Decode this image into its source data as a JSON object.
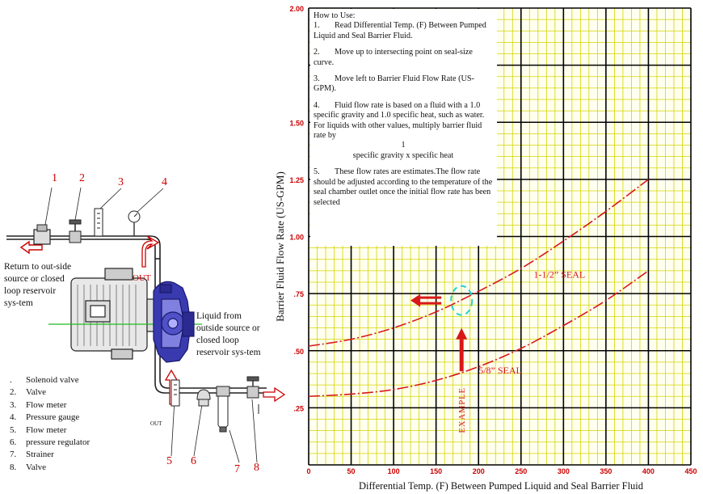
{
  "chart_data": {
    "type": "line",
    "xlabel": "Differential Temp. (F) Between Pumped Liquid and Seal Barrier Fluid",
    "ylabel": "Barrier Fluid Flow Rate (US-GPM)",
    "xlim": [
      0,
      450
    ],
    "ylim": [
      0,
      2.0
    ],
    "x_ticks": [
      "0",
      "50",
      "100",
      "150",
      "200",
      "250",
      "300",
      "350",
      "400",
      "450"
    ],
    "y_ticks": [
      ".25",
      ".50",
      ".75",
      "1.00",
      "1.25",
      "1.50",
      "2.00"
    ],
    "y_tick_values": [
      0.25,
      0.5,
      0.75,
      1.0,
      1.25,
      1.5,
      2.0
    ],
    "grid": true,
    "series": [
      {
        "name": "1-1/2\" SEAL",
        "x": [
          0,
          50,
          100,
          150,
          200,
          250,
          300,
          350,
          400
        ],
        "y": [
          0.52,
          0.55,
          0.6,
          0.67,
          0.76,
          0.86,
          0.98,
          1.11,
          1.25
        ]
      },
      {
        "name": "5/8\" SEAL",
        "x": [
          0,
          50,
          100,
          150,
          200,
          250,
          300,
          350,
          400
        ],
        "y": [
          0.3,
          0.31,
          0.33,
          0.37,
          0.43,
          0.51,
          0.61,
          0.72,
          0.85
        ]
      }
    ],
    "annotations": {
      "example_label": "EXAMPLE",
      "example_x": 180,
      "example_y": 0.72,
      "arrow_up_from_y": 0.41,
      "arrow_left_at_x": 120
    }
  },
  "instructions": {
    "title": "How to Use:",
    "steps": [
      {
        "num": "1.",
        "text": "Read Differential Temp. (F) Between Pumped Liquid and Seal Barrier Fluid."
      },
      {
        "num": "2.",
        "text": "Move up to intersecting point on seal-size curve."
      },
      {
        "num": "3.",
        "text": "Move left to Barrier Fluid Flow Rate (US-GPM)."
      },
      {
        "num": "4.",
        "text": "Fluid flow rate is based on a fluid with a 1.0 specific gravity and 1.0 specific heat, such as water. For liquids with other values, multiply barrier fluid rate by"
      }
    ],
    "fraction_numerator": "1",
    "fraction_denominator": "specific gravity x specific heat",
    "step5": {
      "num": "5.",
      "text": "These flow rates are estimates.The flow rate should be adjusted according to the temperature of the seal chamber outlet once the initial flow rate has been selected"
    }
  },
  "diagram": {
    "callouts": [
      "1",
      "2",
      "3",
      "4",
      "5",
      "6",
      "7",
      "8"
    ],
    "return_label": "Return to out-side source or closed loop reservoir sys-tem",
    "supply_label": "Liquid from outside source or closed loop reservoir sys-tem",
    "out_label_top": "OUT",
    "out_label_bottom": "OUT"
  },
  "components": [
    {
      "num": ".",
      "name": "Solenoid valve"
    },
    {
      "num": "2.",
      "name": "Valve"
    },
    {
      "num": "3.",
      "name": "Flow meter"
    },
    {
      "num": "4.",
      "name": "Pressure gauge"
    },
    {
      "num": "5.",
      "name": "Flow meter"
    },
    {
      "num": "6.",
      "name": "pressure regulator"
    },
    {
      "num": "7.",
      "name": "Strainer"
    },
    {
      "num": "8.",
      "name": "Valve"
    }
  ],
  "colors": {
    "grid_major": "#000000",
    "grid_minor": "#d4d400",
    "plot_bg": "#fffff0",
    "curve": "#d81818",
    "axis_text": "#cc0000",
    "example_ring": "#22d2d2",
    "pump": "#3a3ab0"
  }
}
